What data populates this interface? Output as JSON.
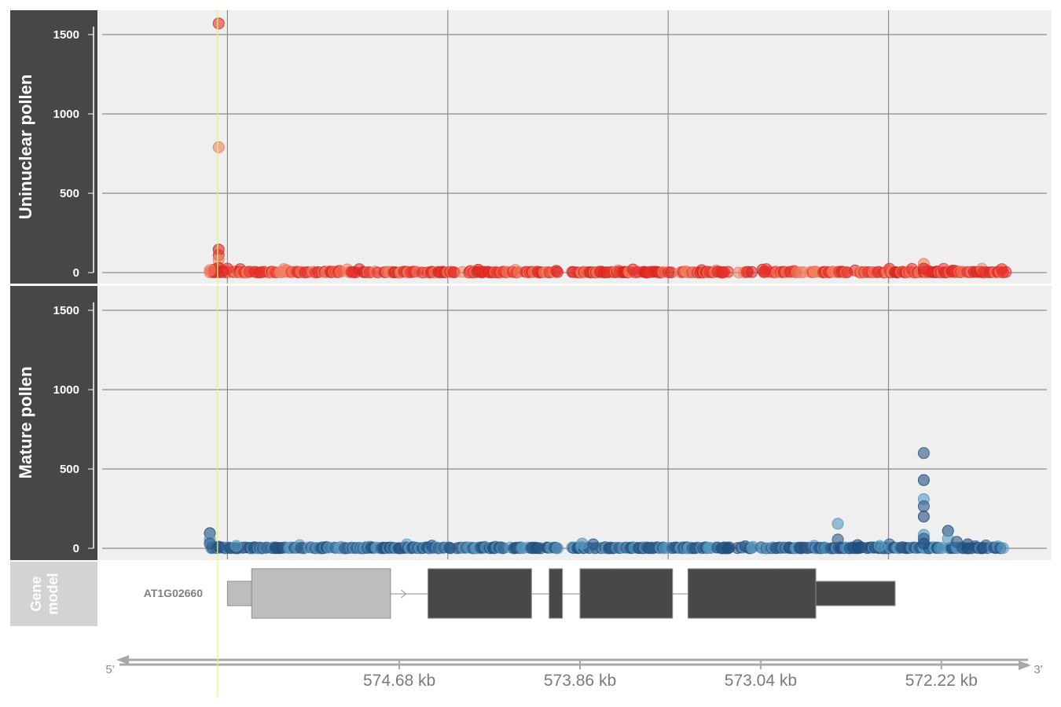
{
  "chart_data": {
    "type": "scatter",
    "panels": [
      {
        "title": "Uninuclear pollen",
        "ylim": [
          0,
          1650
        ],
        "yticks": [
          0,
          500,
          1000,
          1500
        ],
        "colors": [
          "#e8302a",
          "#f08060",
          "#d7261f"
        ],
        "points": [
          [
            575500,
            1570
          ],
          [
            575500,
            790
          ],
          [
            575500,
            145
          ],
          [
            575500,
            110
          ],
          [
            575500,
            80
          ],
          [
            575500,
            30
          ],
          [
            575520,
            20
          ],
          [
            575540,
            15
          ],
          [
            575480,
            10
          ],
          [
            575460,
            25
          ],
          [
            572300,
            55
          ],
          [
            572300,
            25
          ],
          [
            572280,
            10
          ]
        ],
        "baseline": {
          "from": 575540,
          "to": 571920,
          "gaps": [
            [
              573960,
              573900
            ],
            [
              573180,
              573150
            ]
          ]
        }
      },
      {
        "title": "Mature pollen",
        "ylim": [
          0,
          1650
        ],
        "yticks": [
          0,
          500,
          1000,
          1500
        ],
        "colors": [
          "#1f4e7e",
          "#5a9abf",
          "#2f5a88"
        ],
        "points": [
          [
            575540,
            95
          ],
          [
            575540,
            55
          ],
          [
            575540,
            30
          ],
          [
            575500,
            10
          ],
          [
            575420,
            15
          ],
          [
            572300,
            600
          ],
          [
            572300,
            430
          ],
          [
            572300,
            310
          ],
          [
            572300,
            265
          ],
          [
            572300,
            200
          ],
          [
            572300,
            85
          ],
          [
            572300,
            60
          ],
          [
            572300,
            30
          ],
          [
            572690,
            155
          ],
          [
            572690,
            55
          ],
          [
            572190,
            110
          ],
          [
            572190,
            60
          ],
          [
            572150,
            40
          ],
          [
            572100,
            25
          ],
          [
            573850,
            30
          ],
          [
            573800,
            25
          ],
          [
            572600,
            20
          ],
          [
            572500,
            15
          ]
        ],
        "baseline": {
          "from": 575540,
          "to": 571920,
          "gaps": [
            [
              573960,
              573900
            ],
            [
              573180,
              573150
            ]
          ]
        }
      }
    ],
    "x": {
      "domain": [
        576050,
        571720
      ],
      "ticks": [
        574680,
        573860,
        573040,
        572220
      ],
      "tick_labels": [
        "574.68 kb",
        "573.86 kb",
        "573.04 kb",
        "572.22 kb"
      ],
      "gridlines": [
        575460,
        574460,
        573460,
        572460
      ],
      "highlight": 575505,
      "start_label": "5'",
      "end_label": "3'"
    },
    "gene_model": {
      "title": "Gene model",
      "title_lines": [
        "Gene",
        "model"
      ],
      "gene": "AT1G02660",
      "utr_color": "#bdbdbd",
      "cds_color": "#484848",
      "utr_blocks": [
        [
          575460,
          575350,
          "thin"
        ],
        [
          575350,
          574720,
          "thick"
        ]
      ],
      "cds_blocks": [
        [
          574550,
          574080,
          "thick"
        ],
        [
          574000,
          573940,
          "thick"
        ],
        [
          573860,
          573440,
          "thick"
        ],
        [
          573370,
          572790,
          "thick"
        ],
        [
          572790,
          572430,
          "thin"
        ]
      ],
      "arrow_at": 574650
    }
  }
}
